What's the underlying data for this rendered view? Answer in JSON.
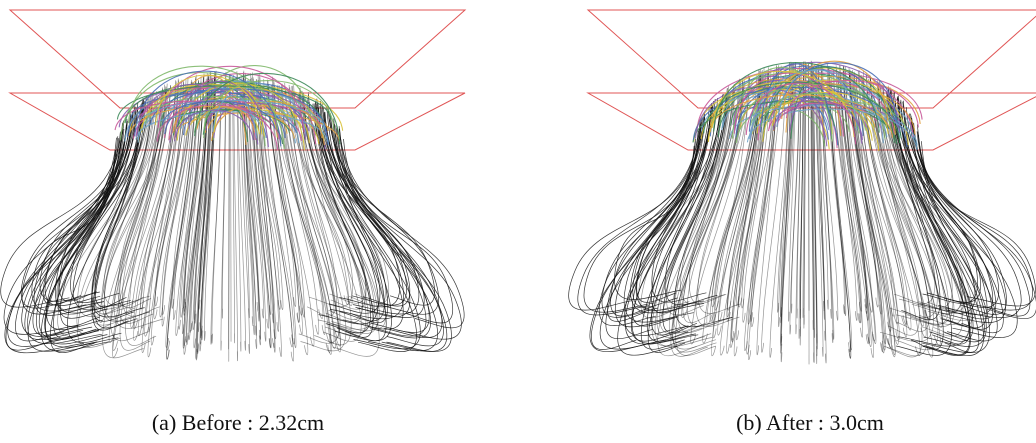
{
  "figure": {
    "subfigures": [
      {
        "caption": "(a) Before : 2.32cm"
      },
      {
        "caption": "(b) After : 3.0cm"
      }
    ]
  }
}
